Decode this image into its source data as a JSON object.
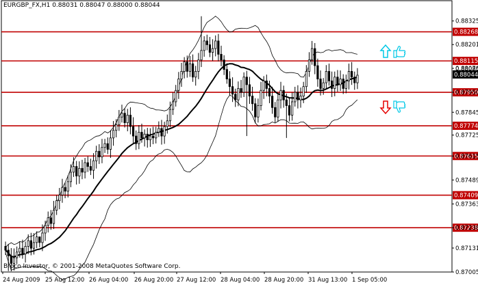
{
  "header": {
    "symbol": "EURGBP_FX,H1",
    "ohlc": "0.88031 0.88047 0.88000 0.88044"
  },
  "copyright": "Broco Investor, © 2001-2008 MetaQuotes Software Corp.",
  "colors": {
    "background": "#ffffff",
    "candle": "#000000",
    "level_line": "#c00000",
    "highlight_label_bg": "#c00000",
    "current_price_bg": "#000000",
    "up_arrow": "#00c8e6",
    "down_arrow": "#e60000",
    "thumb": "#00c8e6"
  },
  "icons": [
    "arrow-up-icon",
    "thumbs-up-icon",
    "arrow-down-icon",
    "thumbs-down-icon"
  ],
  "chart_data": {
    "type": "candlestick",
    "ylim": [
      0.87005,
      0.88385
    ],
    "price_ticks": [
      "0.88325",
      "0.88201",
      "0.88076",
      "0.87950",
      "0.87845",
      "0.87725",
      "0.87615",
      "0.87489",
      "0.87363",
      "0.87238",
      "0.87131",
      "0.87005"
    ],
    "x_ticks": [
      "24 Aug 2009",
      "25 Aug 12:00",
      "26 Aug 04:00",
      "26 Aug 20:00",
      "27 Aug 12:00",
      "28 Aug 04:00",
      "28 Aug 20:00",
      "31 Aug 13:00",
      "1 Sep 05:00"
    ],
    "levels": [
      {
        "label": "0.88268",
        "value": 0.88268,
        "highlight": true
      },
      {
        "label": "0.88115",
        "value": 0.88115,
        "highlight": true
      },
      {
        "label": "0.87950",
        "value": 0.8795,
        "highlight": true
      },
      {
        "label": "0.87774",
        "value": 0.87774,
        "highlight": true
      },
      {
        "label": "0.87615",
        "value": 0.87615,
        "highlight": true
      },
      {
        "label": "0.87409",
        "value": 0.87409,
        "highlight": true
      },
      {
        "label": "0.87238",
        "value": 0.87238,
        "highlight": true
      }
    ],
    "current_price": {
      "label": "0.88044",
      "value": 0.88044
    },
    "hidden_tick": "0.88085",
    "closes": [
      0.8712,
      0.8709,
      0.8705,
      0.8708,
      0.8711,
      0.8713,
      0.871,
      0.8714,
      0.8717,
      0.8713,
      0.8716,
      0.8719,
      0.8716,
      0.8721,
      0.8725,
      0.8729,
      0.8726,
      0.8733,
      0.8738,
      0.8741,
      0.8745,
      0.8743,
      0.8748,
      0.8753,
      0.8756,
      0.8751,
      0.8755,
      0.8753,
      0.8758,
      0.8756,
      0.8754,
      0.8759,
      0.8764,
      0.8761,
      0.8766,
      0.8768,
      0.8765,
      0.8771,
      0.8775,
      0.8778,
      0.8782,
      0.8784,
      0.8779,
      0.8783,
      0.8777,
      0.8772,
      0.8768,
      0.8774,
      0.8771,
      0.8773,
      0.877,
      0.8772,
      0.8771,
      0.8774,
      0.8776,
      0.8772,
      0.8777,
      0.878,
      0.8786,
      0.879,
      0.8796,
      0.8802,
      0.8806,
      0.8811,
      0.8806,
      0.881,
      0.8803,
      0.8806,
      0.8812,
      0.8817,
      0.8822,
      0.882,
      0.8816,
      0.8818,
      0.8822,
      0.8815,
      0.8812,
      0.8807,
      0.8802,
      0.8798,
      0.8794,
      0.8791,
      0.8797,
      0.8795,
      0.8803,
      0.8799,
      0.8793,
      0.8789,
      0.8782,
      0.8788,
      0.8796,
      0.8801,
      0.8797,
      0.8793,
      0.8787,
      0.8782,
      0.8791,
      0.8796,
      0.8791,
      0.8788,
      0.8783,
      0.879,
      0.8795,
      0.8791,
      0.8793,
      0.8798,
      0.8806,
      0.8812,
      0.8818,
      0.8809,
      0.8802,
      0.8797,
      0.88,
      0.8806,
      0.8801,
      0.8797,
      0.8803,
      0.8799,
      0.8802,
      0.8797,
      0.8801,
      0.8806,
      0.8803,
      0.88,
      0.8804
    ],
    "highs": {
      "69": 0.8835,
      "108": 0.8822,
      "12": 0.8718,
      "31": 0.8763
    },
    "lows": {
      "1": 0.8701,
      "85": 0.8772,
      "99": 0.8771
    }
  }
}
